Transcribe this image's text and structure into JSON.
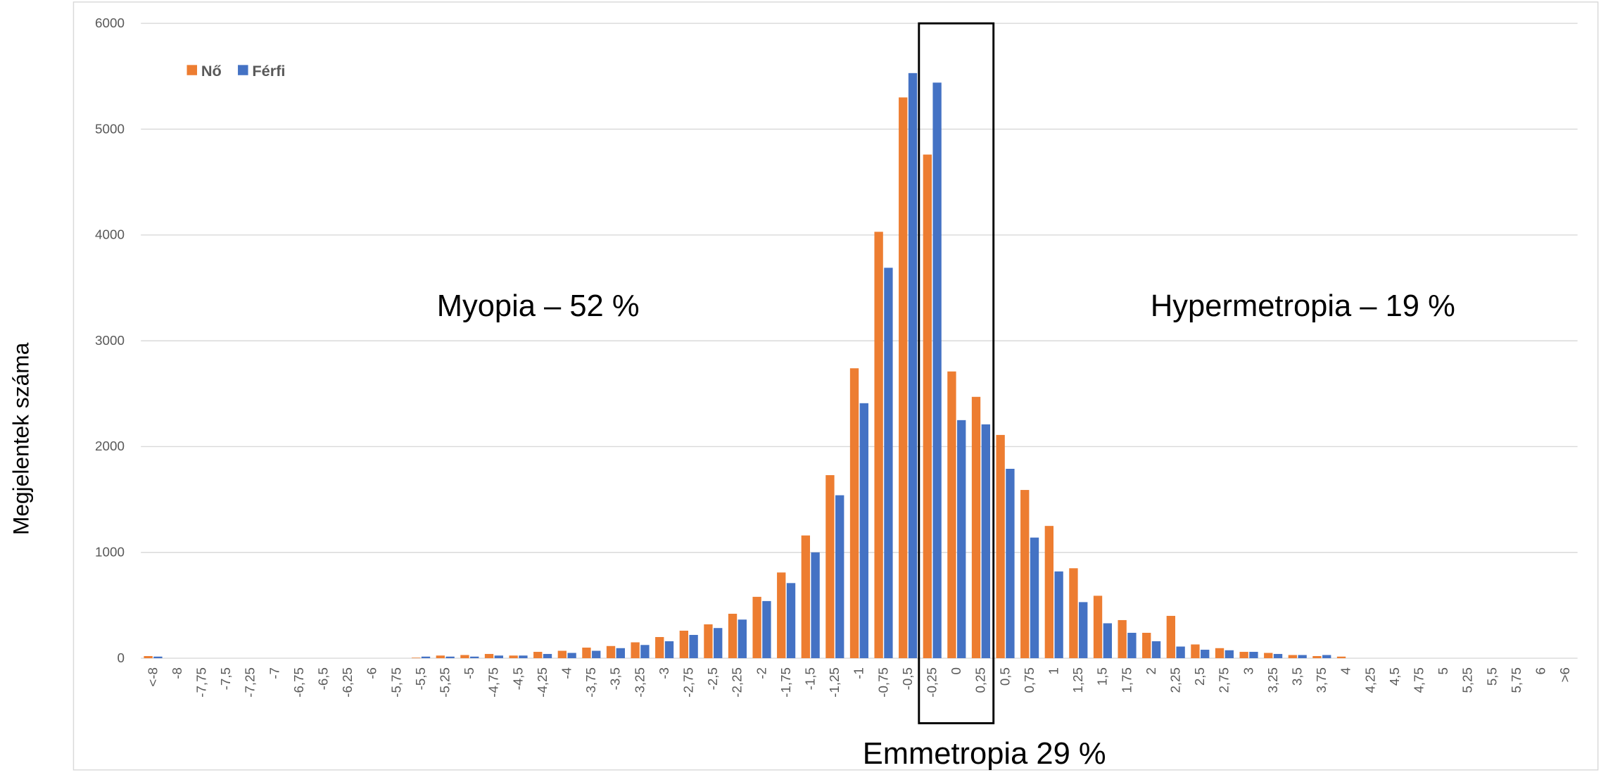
{
  "chart_data": {
    "type": "bar",
    "y_label": "Megjelentek száma",
    "annotations": [
      "Myopia – 52 %",
      "Hypermetropia – 19 %",
      "Emmetropia 29 %"
    ],
    "categories": [
      "<-8",
      "-8",
      "-7,75",
      "-7,5",
      "-7,25",
      "-7",
      "-6,75",
      "-6,5",
      "-6,25",
      "-6",
      "-5,75",
      "-5,5",
      "-5,25",
      "-5",
      "-4,75",
      "-4,5",
      "-4,25",
      "-4",
      "-3,75",
      "-3,5",
      "-3,25",
      "-3",
      "-2,75",
      "-2,5",
      "-2,25",
      "-2",
      "-1,75",
      "-1,5",
      "-1,25",
      "-1",
      "-0,75",
      "-0,5",
      "-0,25",
      "0",
      "0,25",
      "0,5",
      "0,75",
      "1",
      "1,25",
      "1,5",
      "1,75",
      "2",
      "2,25",
      "2,5",
      "2,75",
      "3",
      "3,25",
      "3,5",
      "3,75",
      "4",
      "4,25",
      "4,5",
      "4,75",
      "5",
      "5,25",
      "5,5",
      "5,75",
      "6",
      ">6"
    ],
    "series": [
      {
        "name": "Nő",
        "color": "#ed7d31",
        "values": [
          20,
          0,
          0,
          0,
          0,
          0,
          0,
          0,
          0,
          0,
          0,
          5,
          25,
          30,
          40,
          25,
          60,
          70,
          100,
          115,
          150,
          200,
          260,
          320,
          420,
          580,
          810,
          1160,
          1730,
          2740,
          4030,
          5300,
          4760,
          2710,
          2470,
          2110,
          1590,
          1250,
          850,
          590,
          360,
          240,
          400,
          130,
          95,
          60,
          50,
          30,
          20,
          15,
          0,
          0,
          0,
          0,
          0,
          0,
          0,
          0,
          0
        ]
      },
      {
        "name": "Férfi",
        "color": "#4472c4",
        "values": [
          15,
          0,
          0,
          0,
          0,
          0,
          0,
          0,
          0,
          0,
          0,
          15,
          15,
          15,
          25,
          25,
          40,
          50,
          70,
          95,
          125,
          160,
          220,
          285,
          365,
          540,
          710,
          1000,
          1540,
          2410,
          3690,
          5530,
          5440,
          2250,
          2210,
          1790,
          1140,
          820,
          530,
          330,
          240,
          160,
          110,
          80,
          75,
          60,
          40,
          30,
          30,
          0,
          0,
          0,
          0,
          0,
          0,
          0,
          0,
          0,
          0
        ]
      }
    ],
    "ylim": [
      0,
      6000
    ],
    "yticks": [
      0,
      1000,
      2000,
      3000,
      4000,
      5000,
      6000
    ],
    "grid": true,
    "legend": "top-left"
  }
}
